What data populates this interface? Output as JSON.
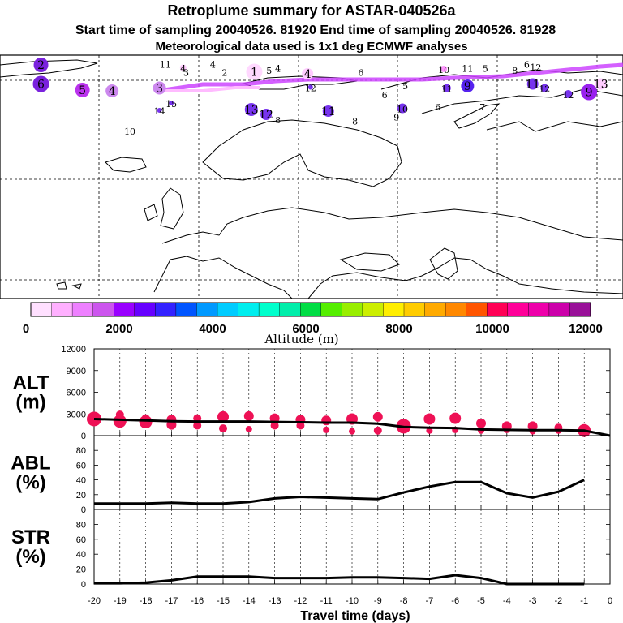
{
  "header": {
    "title": "Retroplume summary for ASTAR-040526a",
    "sampling": "Start time of sampling 20040526. 81920     End time of sampling 20040526. 81928",
    "meteo": "Meteorological data used is 1x1 deg ECMWF analyses"
  },
  "colorbar": {
    "label": "Altitude (m)",
    "ticks": [
      "0",
      "2000",
      "4000",
      "6000",
      "8000",
      "10000",
      "12000"
    ],
    "colors": [
      "#ffe0ff",
      "#ffb0ff",
      "#ee80ff",
      "#cc55ee",
      "#9900ff",
      "#6600ff",
      "#3322ff",
      "#0055ff",
      "#0099ff",
      "#00ccff",
      "#00eeee",
      "#00ffcc",
      "#00eeaa",
      "#00dd44",
      "#55ee00",
      "#99ee00",
      "#ccee00",
      "#ffee00",
      "#ffcc00",
      "#ffaa00",
      "#ff8800",
      "#ff5500",
      "#ff0055",
      "#ff0099",
      "#ee00aa",
      "#cc00aa",
      "#991199"
    ]
  },
  "map": {
    "markers": [
      {
        "n": 2,
        "x": 0.5,
        "y": 0.48,
        "color": "#7a22dd",
        "size": 9
      },
      {
        "n": 4,
        "x": 5.0,
        "y": 0.7,
        "color": "#ffccff",
        "size": 7
      },
      {
        "n": 5,
        "x": 8.0,
        "y": 0.55,
        "color": "#000000",
        "size": 0
      },
      {
        "n": 6,
        "x": 8.7,
        "y": 0.45,
        "color": "#000000",
        "size": 0
      },
      {
        "n": 11,
        "x": 2.6,
        "y": 0.45,
        "color": "#000000",
        "size": 0
      },
      {
        "n": 4,
        "x": 3.4,
        "y": 0.45,
        "color": "#000000",
        "size": 0
      },
      {
        "n": 4,
        "x": 4.5,
        "y": 0.55,
        "color": "#000000",
        "size": 0
      },
      {
        "n": 4,
        "x": 2.9,
        "y": 0.55,
        "color": "#ffccff",
        "size": 4
      },
      {
        "n": 3,
        "x": 2.95,
        "y": 0.65,
        "color": "#000000",
        "size": 0
      },
      {
        "n": 1,
        "x": 4.1,
        "y": 0.65,
        "color": "#ffd8ff",
        "size": 10
      },
      {
        "n": 2,
        "x": 3.6,
        "y": 0.65,
        "color": "#000000",
        "size": 0
      },
      {
        "n": 5,
        "x": 4.35,
        "y": 0.6,
        "color": "#000000",
        "size": 0
      },
      {
        "n": 6,
        "x": 5.9,
        "y": 0.65,
        "color": "#000000",
        "size": 0
      },
      {
        "n": 10,
        "x": 7.3,
        "y": 0.58,
        "color": "#ff99ff",
        "size": 4
      },
      {
        "n": 11,
        "x": 7.7,
        "y": 0.55,
        "color": "#000000",
        "size": 0
      },
      {
        "n": 8,
        "x": 8.5,
        "y": 0.6,
        "color": "#000000",
        "size": 0
      },
      {
        "n": 12,
        "x": 8.85,
        "y": 0.52,
        "color": "#000000",
        "size": 0
      },
      {
        "n": 6,
        "x": 0.5,
        "y": 0.95,
        "color": "#7a22dd",
        "size": 10
      },
      {
        "n": 5,
        "x": 1.2,
        "y": 1.1,
        "color": "#bb33ee",
        "size": 9
      },
      {
        "n": 4,
        "x": 1.7,
        "y": 1.12,
        "color": "#cc88ee",
        "size": 8
      },
      {
        "n": 3,
        "x": 2.5,
        "y": 1.05,
        "color": "#cc88ee",
        "size": 8
      },
      {
        "n": 12,
        "x": 5.05,
        "y": 1.03,
        "color": "#7733ee",
        "size": 3
      },
      {
        "n": 5,
        "x": 6.65,
        "y": 0.98,
        "color": "#000000",
        "size": 0
      },
      {
        "n": 6,
        "x": 6.3,
        "y": 1.2,
        "color": "#000000",
        "size": 0
      },
      {
        "n": 11,
        "x": 7.35,
        "y": 1.05,
        "color": "#7733ee",
        "size": 5
      },
      {
        "n": 9,
        "x": 7.7,
        "y": 1.0,
        "color": "#5522ee",
        "size": 8
      },
      {
        "n": 11,
        "x": 8.8,
        "y": 0.95,
        "color": "#7733ee",
        "size": 7
      },
      {
        "n": 12,
        "x": 9.0,
        "y": 1.05,
        "color": "#7733ee",
        "size": 5
      },
      {
        "n": 9,
        "x": 9.75,
        "y": 1.15,
        "color": "#9922ee",
        "size": 10
      },
      {
        "n": 12,
        "x": 9.4,
        "y": 1.2,
        "color": "#7733ee",
        "size": 5
      },
      {
        "n": 15,
        "x": 2.7,
        "y": 1.42,
        "color": "#7733ee",
        "size": 3
      },
      {
        "n": 14,
        "x": 2.5,
        "y": 1.6,
        "color": "#7733ee",
        "size": 3
      },
      {
        "n": 13,
        "x": 4.05,
        "y": 1.58,
        "color": "#7733ee",
        "size": 8
      },
      {
        "n": 12,
        "x": 4.3,
        "y": 1.7,
        "color": "#7733ee",
        "size": 7
      },
      {
        "n": 8,
        "x": 4.5,
        "y": 1.82,
        "color": "#000000",
        "size": 0
      },
      {
        "n": 11,
        "x": 5.35,
        "y": 1.62,
        "color": "#7733ee",
        "size": 7
      },
      {
        "n": 8,
        "x": 5.8,
        "y": 1.85,
        "color": "#000000",
        "size": 0
      },
      {
        "n": 10,
        "x": 6.6,
        "y": 1.55,
        "color": "#7733ee",
        "size": 6
      },
      {
        "n": 9,
        "x": 6.5,
        "y": 1.75,
        "color": "#000000",
        "size": 0
      },
      {
        "n": 6,
        "x": 7.2,
        "y": 1.5,
        "color": "#000000",
        "size": 0
      },
      {
        "n": 7,
        "x": 7.95,
        "y": 1.5,
        "color": "#000000",
        "size": 0
      },
      {
        "n": 10,
        "x": 2.0,
        "y": 2.1,
        "color": "#000000",
        "size": 0
      },
      {
        "n": 13,
        "x": 9.95,
        "y": 0.95,
        "color": "#ffccff",
        "size": 7
      }
    ]
  },
  "chart_data": [
    {
      "type": "line",
      "panel": "ALT",
      "ylabel": "ALT\n(m)",
      "ylim": [
        0,
        12000
      ],
      "yticks": [
        "0",
        "3000",
        "6000",
        "9000",
        "12000"
      ],
      "xlim": [
        -20,
        0
      ],
      "x": [
        -20,
        -19,
        -18,
        -17,
        -16,
        -15,
        -14,
        -13,
        -12,
        -11,
        -10,
        -9,
        -8,
        -7,
        -6,
        -5,
        -4,
        -3,
        -2,
        -1,
        0
      ],
      "values": [
        2300,
        2200,
        2100,
        2000,
        1950,
        1950,
        1950,
        1900,
        1850,
        1800,
        1800,
        1650,
        1200,
        1100,
        1050,
        850,
        800,
        750,
        750,
        700,
        0
      ],
      "points": [
        {
          "x": -20,
          "y": 2300,
          "s": 9
        },
        {
          "x": -20,
          "y": 2700,
          "s": 5
        },
        {
          "x": -19,
          "y": 2000,
          "s": 8
        },
        {
          "x": -19,
          "y": 2900,
          "s": 5
        },
        {
          "x": -18,
          "y": 1900,
          "s": 8
        },
        {
          "x": -18,
          "y": 2400,
          "s": 5
        },
        {
          "x": -17,
          "y": 2200,
          "s": 6
        },
        {
          "x": -17,
          "y": 1500,
          "s": 6
        },
        {
          "x": -16,
          "y": 2400,
          "s": 5
        },
        {
          "x": -16,
          "y": 1400,
          "s": 5
        },
        {
          "x": -15,
          "y": 2600,
          "s": 7
        },
        {
          "x": -15,
          "y": 1000,
          "s": 5
        },
        {
          "x": -14,
          "y": 2700,
          "s": 6
        },
        {
          "x": -14,
          "y": 900,
          "s": 4
        },
        {
          "x": -13,
          "y": 2400,
          "s": 6
        },
        {
          "x": -13,
          "y": 1400,
          "s": 5
        },
        {
          "x": -12,
          "y": 2200,
          "s": 6
        },
        {
          "x": -12,
          "y": 1400,
          "s": 5
        },
        {
          "x": -11,
          "y": 2100,
          "s": 6
        },
        {
          "x": -11,
          "y": 800,
          "s": 4
        },
        {
          "x": -10,
          "y": 2300,
          "s": 7
        },
        {
          "x": -10,
          "y": 600,
          "s": 4
        },
        {
          "x": -9,
          "y": 2600,
          "s": 6
        },
        {
          "x": -9,
          "y": 700,
          "s": 5
        },
        {
          "x": -8,
          "y": 1300,
          "s": 9
        },
        {
          "x": -7,
          "y": 2300,
          "s": 7
        },
        {
          "x": -7,
          "y": 700,
          "s": 4
        },
        {
          "x": -6,
          "y": 2400,
          "s": 7
        },
        {
          "x": -6,
          "y": 800,
          "s": 4
        },
        {
          "x": -5,
          "y": 1700,
          "s": 6
        },
        {
          "x": -5,
          "y": 700,
          "s": 4
        },
        {
          "x": -4,
          "y": 1300,
          "s": 6
        },
        {
          "x": -4,
          "y": 800,
          "s": 4
        },
        {
          "x": -3,
          "y": 1300,
          "s": 6
        },
        {
          "x": -3,
          "y": 600,
          "s": 4
        },
        {
          "x": -2,
          "y": 1100,
          "s": 5
        },
        {
          "x": -2,
          "y": 700,
          "s": 4
        },
        {
          "x": -1,
          "y": 700,
          "s": 8
        }
      ]
    },
    {
      "type": "line",
      "panel": "ABL",
      "ylabel": "ABL\n(%)",
      "ylim": [
        0,
        100
      ],
      "yticks": [
        "0",
        "20",
        "40",
        "60",
        "80"
      ],
      "xlim": [
        -20,
        0
      ],
      "x": [
        -20,
        -19,
        -18,
        -17,
        -16,
        -15,
        -14,
        -13,
        -12,
        -11,
        -10,
        -9,
        -8,
        -7,
        -6,
        -5,
        -4,
        -3,
        -2,
        -1
      ],
      "values": [
        8,
        8,
        8,
        9,
        8,
        8,
        10,
        15,
        17,
        16,
        15,
        14,
        23,
        31,
        37,
        37,
        22,
        16,
        24,
        40
      ]
    },
    {
      "type": "line",
      "panel": "STR",
      "ylabel": "STR\n(%)",
      "ylim": [
        0,
        100
      ],
      "yticks": [
        "0",
        "20",
        "40",
        "60",
        "80"
      ],
      "xlim": [
        -20,
        0
      ],
      "xlabel": "Travel time (days)",
      "xticks": [
        "-20",
        "-19",
        "-18",
        "-17",
        "-16",
        "-15",
        "-14",
        "-13",
        "-12",
        "-11",
        "-10",
        "-9",
        "-8",
        "-7",
        "-6",
        "-5",
        "-4",
        "-3",
        "-2",
        "-1",
        "0"
      ],
      "x": [
        -20,
        -19,
        -18,
        -17,
        -16,
        -15,
        -14,
        -13,
        -12,
        -11,
        -10,
        -9,
        -8,
        -7,
        -6,
        -5,
        -4,
        -3,
        -2,
        -1
      ],
      "values": [
        1,
        1,
        2,
        5,
        10,
        10,
        10,
        8,
        8,
        8,
        9,
        9,
        8,
        7,
        12,
        8,
        0,
        0,
        0,
        0
      ]
    }
  ]
}
